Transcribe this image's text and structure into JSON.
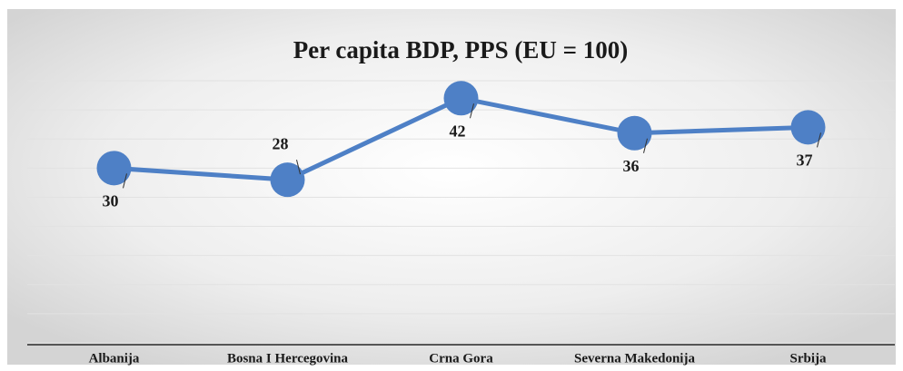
{
  "chart_data": {
    "type": "line",
    "title": "Per capita BDP, PPS (EU = 100)",
    "categories": [
      "Albanija",
      "Bosna I Hercegovina",
      "Crna Gora",
      "Severna Makedonija",
      "Srbija"
    ],
    "series": [
      {
        "name": "Per capita BDP",
        "color": "#4e80c6",
        "values": [
          30,
          28,
          42,
          36,
          37
        ]
      }
    ],
    "ylim": [
      0,
      45
    ],
    "yticks": [
      0,
      5,
      10,
      15,
      20,
      25,
      30,
      35,
      40,
      45
    ],
    "grid": true
  }
}
